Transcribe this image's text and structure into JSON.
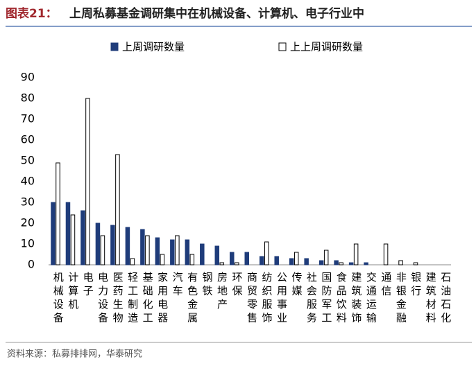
{
  "chart_data": {
    "type": "bar",
    "figure_label": "图表21：",
    "title": "上周私募基金调研集中在机械设备、计算机、电子行业中",
    "source": "资料来源：私募排排网，华泰研究",
    "categories": [
      "机械设备",
      "计算机",
      "电子",
      "电力设备",
      "医药生物",
      "轻工制造",
      "基础化工",
      "家用电器",
      "汽车",
      "有色金属",
      "钢铁",
      "房地产",
      "环保",
      "商贸零售",
      "纺织服饰",
      "公用事业",
      "传媒",
      "社会服务",
      "国防军工",
      "食品饮料",
      "建筑装饰",
      "交通运输",
      "通信",
      "非银金融",
      "银行",
      "建筑材料",
      "石油石化"
    ],
    "series": [
      {
        "name": "上周调研数量",
        "color": "#1f3c7a",
        "values": [
          30,
          30,
          26,
          20,
          19,
          18,
          17,
          13,
          12,
          12,
          10,
          9,
          6,
          6,
          4,
          4,
          3,
          3,
          2,
          2,
          1,
          1,
          0,
          0,
          0,
          0,
          0
        ]
      },
      {
        "name": "上上周调研数量",
        "color": "#ffffff",
        "values": [
          49,
          24,
          80,
          14,
          53,
          3,
          14,
          5,
          14,
          5,
          0,
          1,
          1,
          0,
          11,
          0,
          6,
          0,
          7,
          1,
          10,
          0,
          10,
          2,
          1,
          0,
          0
        ]
      }
    ],
    "ylim": [
      0,
      90
    ],
    "yticks": [
      0,
      10,
      20,
      30,
      40,
      50,
      60,
      70,
      80,
      90
    ]
  }
}
